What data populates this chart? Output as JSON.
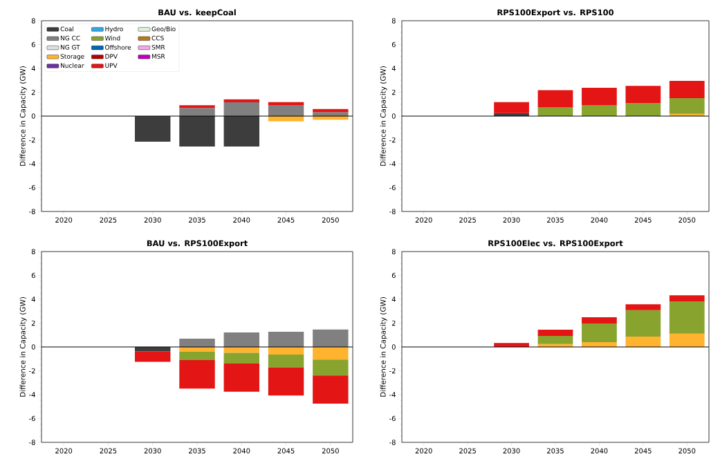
{
  "chart_data": [
    {
      "type": "bar",
      "stacked": true,
      "title": "BAU vs. keepCoal",
      "ylabel": "Difference in Capacity (GW)",
      "categories": [
        "2020",
        "2025",
        "2030",
        "2035",
        "2040",
        "2045",
        "2050"
      ],
      "ylim": [
        -8,
        8
      ],
      "yticks": [
        -8,
        -6,
        -4,
        -2,
        0,
        2,
        4,
        6,
        8
      ],
      "legend": "top left",
      "ref_lines": [
        {
          "axis": "y",
          "value": 0,
          "color": "#000000"
        }
      ],
      "series": [
        {
          "name": "Coal",
          "color": "#3d3d3d",
          "values": [
            null,
            null,
            -2.15,
            -2.55,
            -2.55,
            null,
            null
          ]
        },
        {
          "name": "NG CC",
          "color": "#808080",
          "values": [
            null,
            null,
            null,
            0.68,
            1.16,
            0.93,
            0.33
          ]
        },
        {
          "name": "NG GT",
          "color": "#e0e0e0",
          "values": [
            null,
            null,
            null,
            null,
            null,
            null,
            null
          ]
        },
        {
          "name": "Storage",
          "color": "#ffb32e",
          "values": [
            null,
            null,
            null,
            null,
            null,
            -0.43,
            -0.31
          ]
        },
        {
          "name": "Nuclear",
          "color": "#7030a0",
          "values": [
            null,
            null,
            null,
            null,
            null,
            null,
            null
          ]
        },
        {
          "name": "Hydro",
          "color": "#35a7e0",
          "values": [
            null,
            null,
            null,
            null,
            null,
            null,
            null
          ]
        },
        {
          "name": "Wind",
          "color": "#88a32e",
          "values": [
            null,
            null,
            null,
            null,
            null,
            null,
            null
          ]
        },
        {
          "name": "Offshore",
          "color": "#0066b3",
          "values": [
            null,
            null,
            null,
            null,
            null,
            null,
            null
          ]
        },
        {
          "name": "DPV",
          "color": "#b80000",
          "values": [
            null,
            null,
            null,
            null,
            null,
            null,
            null
          ]
        },
        {
          "name": "UPV",
          "color": "#e31515",
          "values": [
            null,
            null,
            null,
            0.23,
            0.25,
            0.25,
            0.27
          ]
        },
        {
          "name": "Geo/Bio",
          "color": "#e2efd9",
          "values": [
            null,
            null,
            null,
            null,
            null,
            null,
            null
          ]
        },
        {
          "name": "CCS",
          "color": "#b87a1a",
          "values": [
            null,
            null,
            null,
            null,
            null,
            null,
            null
          ]
        },
        {
          "name": "SMR",
          "color": "#eeaae6",
          "values": [
            null,
            null,
            null,
            null,
            null,
            null,
            null
          ]
        },
        {
          "name": "MSR",
          "color": "#c000c0",
          "values": [
            null,
            null,
            null,
            null,
            null,
            null,
            null
          ]
        }
      ]
    },
    {
      "type": "bar",
      "stacked": true,
      "title": "RPS100Export vs. RPS100",
      "ylabel": "Difference in Capacity (GW)",
      "categories": [
        "2020",
        "2025",
        "2030",
        "2035",
        "2040",
        "2045",
        "2050"
      ],
      "ylim": [
        -8,
        8
      ],
      "yticks": [
        -8,
        -6,
        -4,
        -2,
        0,
        2,
        4,
        6,
        8
      ],
      "ref_lines": [
        {
          "axis": "y",
          "value": 0,
          "color": "#000000"
        }
      ],
      "series": [
        {
          "color": "#3d3d3d",
          "values": [
            null,
            null,
            0.25,
            null,
            null,
            null,
            null
          ]
        },
        {
          "color": "#ffb32e",
          "values": [
            null,
            null,
            null,
            null,
            null,
            null,
            0.19
          ]
        },
        {
          "color": "#88a32e",
          "values": [
            null,
            null,
            null,
            0.72,
            0.93,
            1.08,
            1.32
          ]
        },
        {
          "color": "#e31515",
          "values": [
            null,
            null,
            0.93,
            1.46,
            1.45,
            1.45,
            1.45
          ]
        }
      ]
    },
    {
      "type": "bar",
      "stacked": true,
      "title": "BAU vs. RPS100Export",
      "ylabel": "Difference in Capacity (GW)",
      "categories": [
        "2020",
        "2025",
        "2030",
        "2035",
        "2040",
        "2045",
        "2050"
      ],
      "ylim": [
        -8,
        8
      ],
      "yticks": [
        -8,
        -6,
        -4,
        -2,
        0,
        2,
        4,
        6,
        8
      ],
      "ref_lines": [
        {
          "axis": "y",
          "value": 0,
          "color": "#000000"
        }
      ],
      "series": [
        {
          "color": "#3d3d3d",
          "values": [
            null,
            null,
            -0.37,
            null,
            null,
            null,
            null
          ]
        },
        {
          "color": "#808080",
          "values": [
            null,
            null,
            null,
            0.69,
            1.21,
            1.27,
            1.46
          ]
        },
        {
          "color": "#ffb32e",
          "values": [
            null,
            null,
            null,
            -0.39,
            -0.5,
            -0.64,
            -1.06
          ]
        },
        {
          "color": "#88a32e",
          "values": [
            null,
            null,
            null,
            -0.71,
            -0.89,
            -1.07,
            -1.33
          ]
        },
        {
          "color": "#e31515",
          "values": [
            null,
            null,
            -0.88,
            -2.39,
            -2.37,
            -2.37,
            -2.37
          ]
        }
      ]
    },
    {
      "type": "bar",
      "stacked": true,
      "title": "RPS100Elec vs. RPS100Export",
      "ylabel": "Difference in Capacity (GW)",
      "categories": [
        "2020",
        "2025",
        "2030",
        "2035",
        "2040",
        "2045",
        "2050"
      ],
      "ylim": [
        -8,
        8
      ],
      "yticks": [
        -8,
        -6,
        -4,
        -2,
        0,
        2,
        4,
        6,
        8
      ],
      "ref_lines": [
        {
          "axis": "y",
          "value": 0,
          "color": "#000000"
        }
      ],
      "series": [
        {
          "color": "#ffb32e",
          "values": [
            null,
            null,
            null,
            0.25,
            0.4,
            0.87,
            1.12
          ]
        },
        {
          "color": "#88a32e",
          "values": [
            null,
            null,
            null,
            0.67,
            1.57,
            2.21,
            2.71
          ]
        },
        {
          "color": "#e31515",
          "values": [
            null,
            null,
            0.33,
            0.53,
            0.52,
            0.5,
            0.51
          ]
        }
      ]
    }
  ]
}
